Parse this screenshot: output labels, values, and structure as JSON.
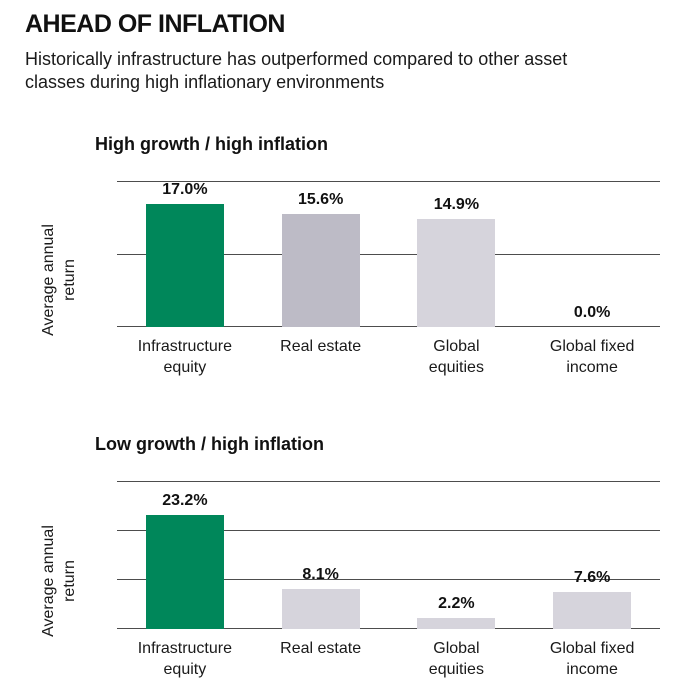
{
  "header": {
    "title": "AHEAD OF INFLATION",
    "subtitle": "Historically infrastructure has outperformed compared to other asset classes during high inflationary environments"
  },
  "colors": {
    "infrastructure_green": "#00875A",
    "gray_medium": "#BDBBC6",
    "gray_light": "#D6D4DC",
    "gridline": "#4D4D4D",
    "text": "#1A1A1A"
  },
  "chart_data": [
    {
      "type": "bar",
      "title": "High growth / high inflation",
      "ylabel": "Average annual\nreturn",
      "xlabel": "",
      "categories": [
        "Infrastructure\nequity",
        "Real estate",
        "Global\nequities",
        "Global fixed\nincome"
      ],
      "values": [
        17.0,
        15.6,
        14.9,
        0.0
      ],
      "value_labels": [
        "17.0%",
        "15.6%",
        "14.9%",
        "0.0%"
      ],
      "bar_colors": [
        "#00875A",
        "#BDBBC6",
        "#D6D4DC",
        "#D6D4DC"
      ],
      "ylim": [
        0,
        20
      ],
      "ytick": 10,
      "grid": true,
      "legend": false
    },
    {
      "type": "bar",
      "title": "Low growth / high inflation",
      "ylabel": "Average annual\nreturn",
      "xlabel": "",
      "categories": [
        "Infrastructure\nequity",
        "Real estate",
        "Global\nequities",
        "Global fixed\nincome"
      ],
      "values": [
        23.2,
        8.1,
        2.2,
        7.6
      ],
      "value_labels": [
        "23.2%",
        "8.1%",
        "2.2%",
        "7.6%"
      ],
      "bar_colors": [
        "#00875A",
        "#D6D4DC",
        "#D6D4DC",
        "#D6D4DC"
      ],
      "ylim": [
        0,
        30
      ],
      "ytick": 10,
      "grid": true,
      "legend": false
    }
  ]
}
